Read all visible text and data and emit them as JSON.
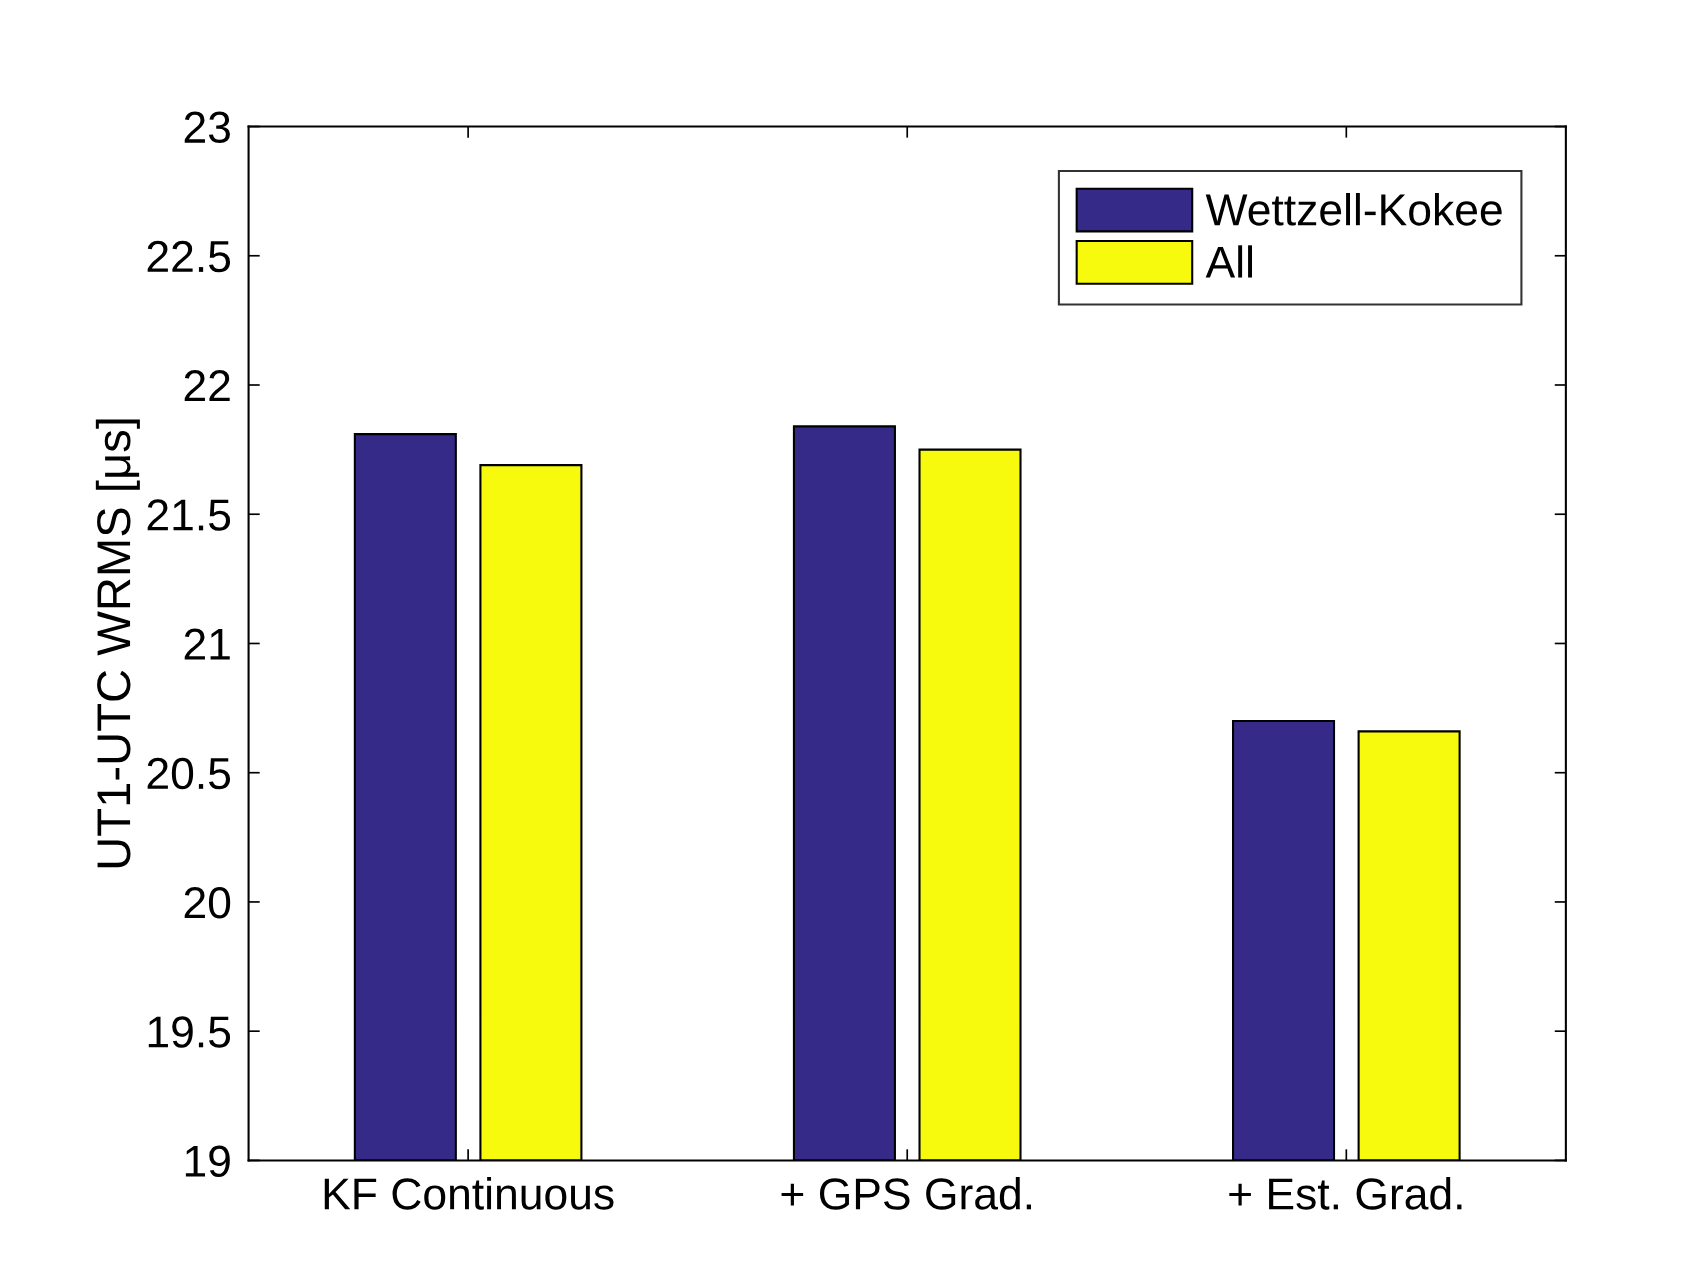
{
  "chart_data": {
    "type": "bar",
    "ylabel": "UT1-UTC WRMS [μs]",
    "categories": [
      "KF Continuous",
      "+ GPS Grad.",
      "+ Est. Grad."
    ],
    "series": [
      {
        "name": "Wettzell-Kokee",
        "color": "#352a87",
        "values": [
          21.81,
          21.84,
          20.7
        ]
      },
      {
        "name": "All",
        "color": "#f8fa0d",
        "values": [
          21.69,
          21.75,
          20.66
        ]
      }
    ],
    "ylim": [
      19,
      23
    ],
    "yticks": [
      19,
      19.5,
      20,
      20.5,
      21,
      21.5,
      22,
      22.5,
      23
    ],
    "grid": false,
    "legend": "top right"
  }
}
